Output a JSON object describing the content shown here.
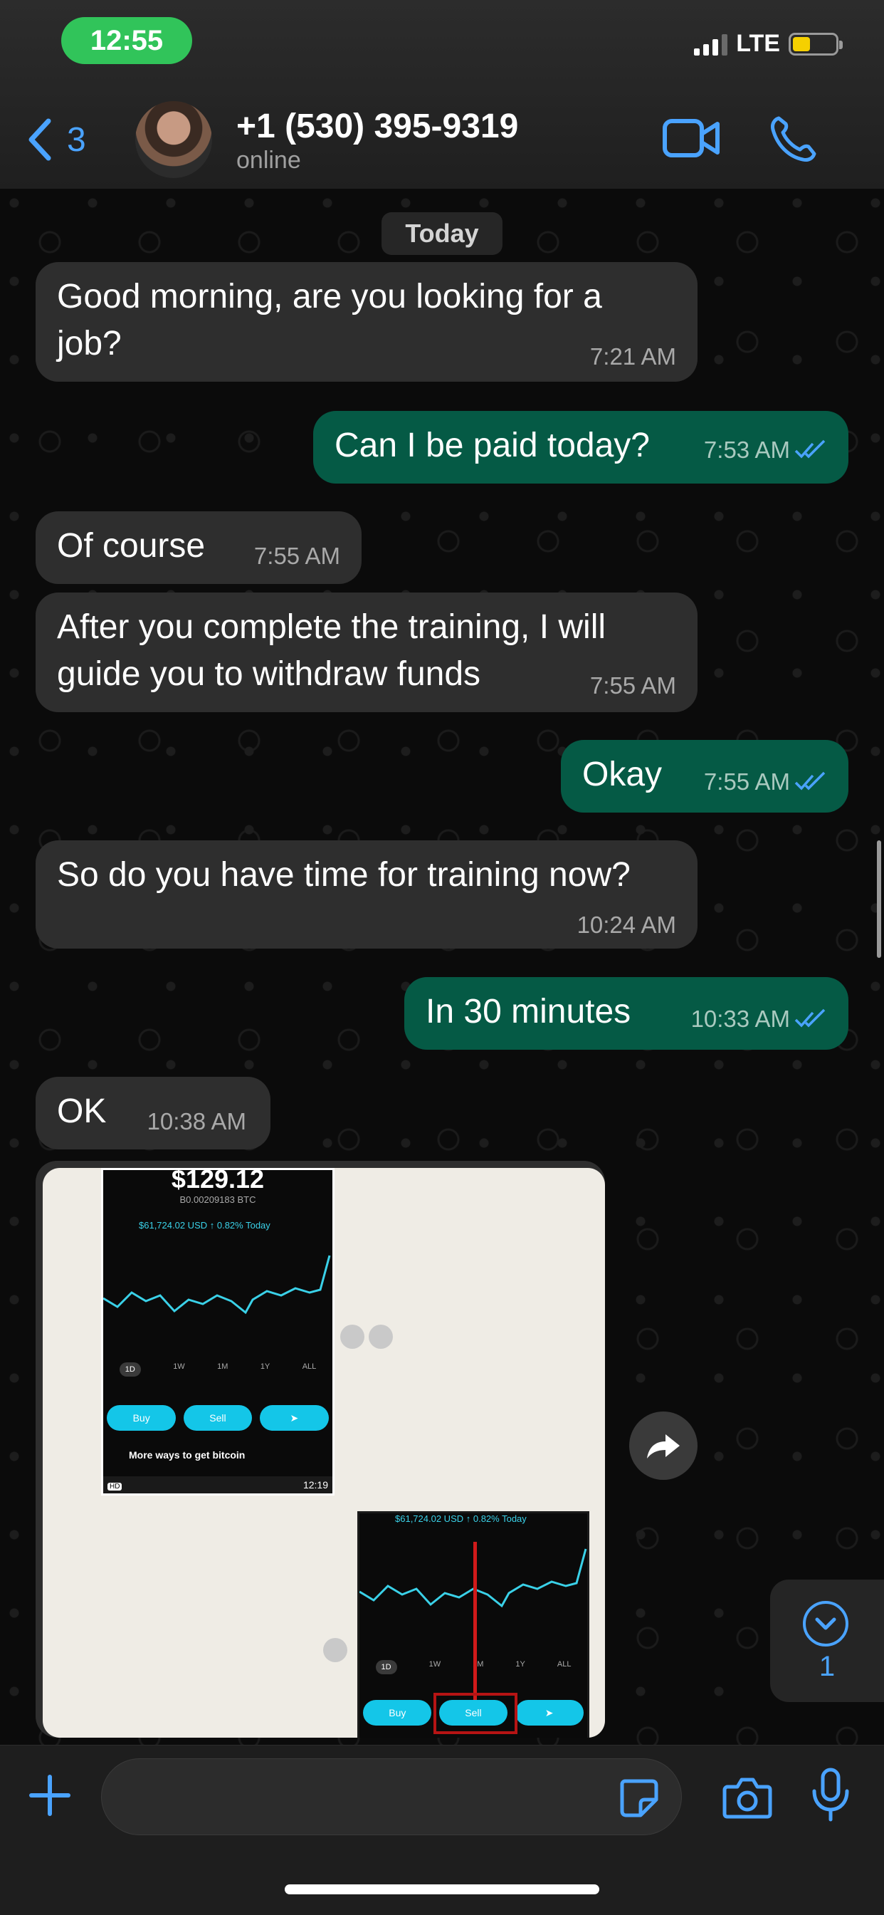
{
  "status_bar": {
    "time": "12:55",
    "network": "LTE"
  },
  "header": {
    "back_count": "3",
    "contact_name": "+1 (530) 395-9319",
    "contact_status": "online",
    "icons": [
      "chevron-left-icon",
      "video-call-icon",
      "phone-call-icon"
    ]
  },
  "chat": {
    "date_separator": "Today",
    "messages": [
      {
        "direction": "in",
        "text_lines": [
          "Good morning, are you looking for a",
          "job?"
        ],
        "time": "7:21 AM"
      },
      {
        "direction": "out",
        "text_lines": [
          "Can I be paid today?"
        ],
        "time": "7:53 AM",
        "read": true
      },
      {
        "direction": "in",
        "text_lines": [
          "Of course"
        ],
        "time": "7:55 AM"
      },
      {
        "direction": "in",
        "text_lines": [
          "After you complete the training, I will",
          "guide you to withdraw funds"
        ],
        "time": "7:55 AM"
      },
      {
        "direction": "out",
        "text_lines": [
          "Okay"
        ],
        "time": "7:55 AM",
        "read": true
      },
      {
        "direction": "in",
        "text_lines": [
          "So do you have time for training now?"
        ],
        "time": "10:24 AM"
      },
      {
        "direction": "out",
        "text_lines": [
          "In 30 minutes"
        ],
        "time": "10:33 AM",
        "read": true
      },
      {
        "direction": "in",
        "text_lines": [
          "OK"
        ],
        "time": "10:38 AM"
      }
    ],
    "image_message": {
      "screenshot_1": {
        "price": "$129.12",
        "btc": "B0.00209183 BTC",
        "ticker": "$61,724.02 USD  ↑ 0.82%  Today",
        "timeframes": [
          "1D",
          "1W",
          "1M",
          "1Y",
          "ALL"
        ],
        "buttons": [
          "Buy",
          "Sell",
          "➤"
        ],
        "more_text": "More ways to get bitcoin",
        "footer_time": "12:19",
        "badge": "HD"
      },
      "screenshot_2": {
        "ticker": "$61,724.02 USD  ↑ 0.82%  Today",
        "timeframes": [
          "1D",
          "1W",
          "1M",
          "1Y",
          "ALL"
        ],
        "buttons": [
          "Buy",
          "Sell",
          "➤"
        ]
      }
    },
    "unread_badge": "1"
  },
  "composer": {
    "placeholder": ""
  },
  "colors": {
    "accent": "#4aa3ff",
    "incoming_bubble": "#2e2e2e",
    "outgoing_bubble": "#055a45",
    "status_pill": "#31c45a",
    "battery": "#f5d000"
  }
}
